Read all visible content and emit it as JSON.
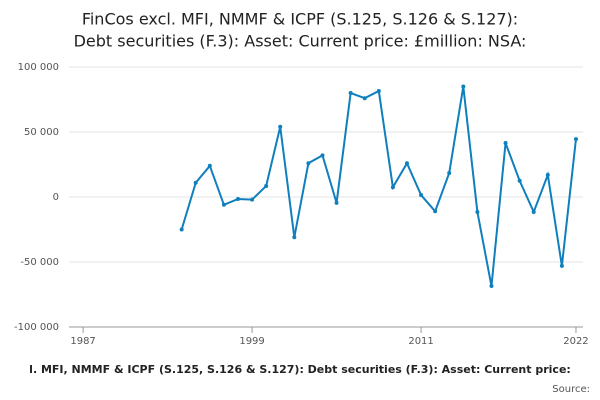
{
  "chart_data": {
    "type": "line",
    "title": [
      "FinCos excl. MFI, NMMF & ICPF (S.125, S.126 & S.127):",
      "Debt securities (F.3): Asset: Current price: £million: NSA:"
    ],
    "footer": "l. MFI, NMMF & ICPF (S.125, S.126 & S.127): Debt securities (F.3): Asset: Current price:",
    "source": "Source:",
    "x": [
      1994,
      1995,
      1996,
      1997,
      1998,
      1999,
      2000,
      2001,
      2002,
      2003,
      2004,
      2005,
      2006,
      2007,
      2008,
      2009,
      2010,
      2011,
      2012,
      2013,
      2014,
      2015,
      2016,
      2017,
      2018,
      2019,
      2020,
      2021,
      2022
    ],
    "series": [
      {
        "color": "#0f7fbd",
        "values": [
          -25000,
          11000,
          24000,
          -6000,
          -1500,
          -2000,
          8500,
          54000,
          -31000,
          26000,
          32000,
          -4500,
          80000,
          76000,
          81500,
          7500,
          26000,
          1500,
          -11000,
          18500,
          85000,
          -11500,
          -68500,
          41500,
          12500,
          -11500,
          17000,
          -53000,
          44500
        ]
      }
    ],
    "xlim": [
      1986,
      2022.5
    ],
    "xticks": [
      1987,
      1999,
      2011,
      2022
    ],
    "ylim": [
      -100000,
      100000
    ],
    "yticks": [
      {
        "value": -100000,
        "label": "-100 000"
      },
      {
        "value": -50000,
        "label": "-50 000"
      },
      {
        "value": 0,
        "label": "0"
      },
      {
        "value": 50000,
        "label": "50 000"
      },
      {
        "value": 100000,
        "label": "100 000"
      }
    ],
    "grid": true
  }
}
